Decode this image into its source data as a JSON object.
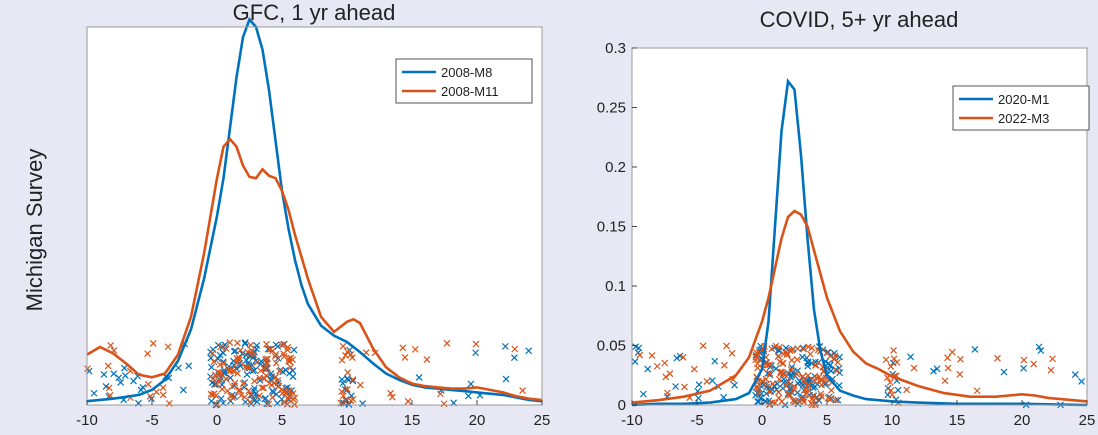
{
  "figure": {
    "ylabel": "Michigan Survey"
  },
  "chart_data": [
    {
      "type": "line",
      "title": "GFC, 1 yr ahead",
      "xlim": [
        -10,
        25
      ],
      "ylim": [
        0,
        0.3
      ],
      "xticks": [
        "-10",
        "-5",
        "0",
        "5",
        "10",
        "15",
        "20",
        "25"
      ],
      "yticks": [],
      "legend_position": "top-right",
      "colors": [
        "#0072bd",
        "#d95319"
      ],
      "series": [
        {
          "name": "2008-M8",
          "x": [
            -10,
            -8,
            -6,
            -5,
            -4,
            -3,
            -2,
            -1,
            0,
            0.5,
            1,
            1.5,
            2,
            2.5,
            3,
            3.5,
            4,
            4.5,
            5,
            5.5,
            6,
            6.5,
            7,
            8,
            9,
            10,
            11,
            12,
            13,
            14,
            15,
            16,
            17,
            18,
            19,
            20,
            21,
            22,
            23,
            24,
            25
          ],
          "y": [
            0.003,
            0.005,
            0.008,
            0.012,
            0.02,
            0.035,
            0.06,
            0.1,
            0.15,
            0.18,
            0.22,
            0.26,
            0.292,
            0.306,
            0.3,
            0.282,
            0.25,
            0.21,
            0.17,
            0.14,
            0.115,
            0.095,
            0.08,
            0.063,
            0.055,
            0.05,
            0.042,
            0.033,
            0.025,
            0.02,
            0.016,
            0.014,
            0.013,
            0.012,
            0.011,
            0.01,
            0.009,
            0.008,
            0.006,
            0.004,
            0.003
          ]
        },
        {
          "name": "2008-M11",
          "x": [
            -10,
            -9,
            -8,
            -7,
            -6,
            -5,
            -4,
            -3,
            -2,
            -1,
            0,
            0.5,
            1,
            1.5,
            2,
            2.5,
            3,
            3.5,
            4,
            4.5,
            5,
            5.5,
            6,
            7,
            8,
            9,
            10,
            10.5,
            11,
            12,
            13,
            14,
            15,
            16,
            17,
            18,
            19,
            20,
            21,
            22,
            23,
            24,
            25
          ],
          "y": [
            0.04,
            0.046,
            0.041,
            0.033,
            0.024,
            0.022,
            0.025,
            0.04,
            0.07,
            0.12,
            0.18,
            0.205,
            0.211,
            0.205,
            0.19,
            0.181,
            0.18,
            0.187,
            0.182,
            0.18,
            0.17,
            0.155,
            0.135,
            0.1,
            0.07,
            0.058,
            0.066,
            0.068,
            0.065,
            0.045,
            0.03,
            0.022,
            0.017,
            0.015,
            0.014,
            0.013,
            0.013,
            0.014,
            0.012,
            0.01,
            0.007,
            0.005,
            0.004
          ]
        }
      ]
    },
    {
      "type": "line",
      "title": "COVID, 5+ yr ahead",
      "xlim": [
        -10,
        25
      ],
      "ylim": [
        0,
        0.3
      ],
      "xticks": [
        "-10",
        "-5",
        "0",
        "5",
        "10",
        "15",
        "20",
        "25"
      ],
      "yticks": [
        "0",
        "0.05",
        "0.1",
        "0.15",
        "0.2",
        "0.25",
        "0.3"
      ],
      "legend_position": "top-right",
      "colors": [
        "#0072bd",
        "#d95319"
      ],
      "series": [
        {
          "name": "2020-M1",
          "x": [
            -10,
            -8,
            -6,
            -4,
            -2,
            -1,
            0,
            0.5,
            1,
            1.5,
            2,
            2.5,
            3,
            3.5,
            4,
            4.5,
            5,
            6,
            7,
            8,
            10,
            12,
            15,
            20,
            25
          ],
          "y": [
            0,
            0.001,
            0.001,
            0.002,
            0.005,
            0.01,
            0.03,
            0.07,
            0.15,
            0.23,
            0.272,
            0.265,
            0.21,
            0.14,
            0.08,
            0.045,
            0.025,
            0.012,
            0.008,
            0.005,
            0.003,
            0.002,
            0.001,
            0.001,
            0
          ]
        },
        {
          "name": "2022-M3",
          "x": [
            -10,
            -8,
            -6,
            -4,
            -2,
            -1,
            0,
            0.5,
            1,
            1.5,
            2,
            2.5,
            3,
            3.5,
            4,
            4.5,
            5,
            6,
            7,
            8,
            9,
            10,
            12,
            14,
            16,
            18,
            19,
            20,
            21,
            22,
            25
          ],
          "y": [
            0.002,
            0.004,
            0.007,
            0.012,
            0.025,
            0.04,
            0.07,
            0.09,
            0.115,
            0.14,
            0.158,
            0.163,
            0.16,
            0.15,
            0.13,
            0.11,
            0.09,
            0.062,
            0.045,
            0.035,
            0.03,
            0.024,
            0.016,
            0.01,
            0.007,
            0.007,
            0.008,
            0.009,
            0.008,
            0.006,
            0.003
          ]
        }
      ]
    }
  ]
}
